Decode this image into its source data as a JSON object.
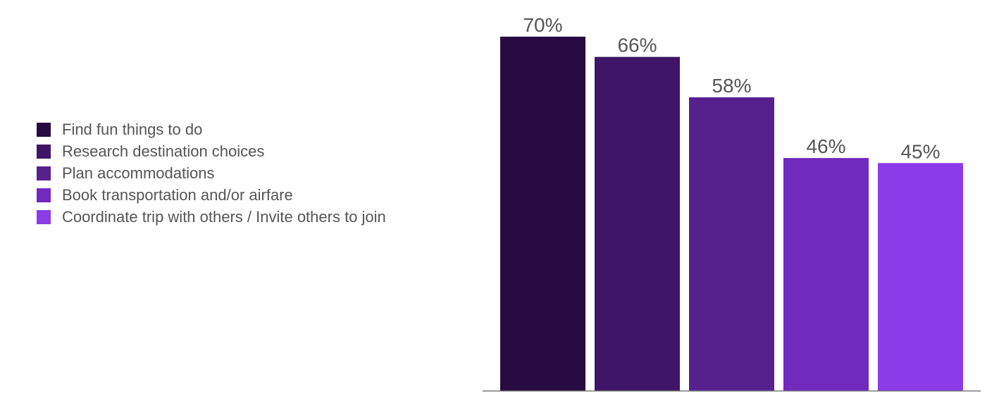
{
  "chart_data": {
    "type": "bar",
    "categories": [
      "Find fun things to do",
      "Research destination choices",
      "Plan accommodations",
      "Book transportation and/or airfare",
      "Coordinate trip with others / Invite others to join"
    ],
    "values": [
      70,
      66,
      58,
      46,
      45
    ],
    "value_labels": [
      "70%",
      "66%",
      "58%",
      "46%",
      "45%"
    ],
    "colors": [
      "#260b40",
      "#3f1667",
      "#57208f",
      "#7229bd",
      "#8c3be8"
    ],
    "title": "",
    "xlabel": "",
    "ylabel": "",
    "ylim": [
      0,
      70
    ],
    "grid": false,
    "legend_position": "left"
  }
}
